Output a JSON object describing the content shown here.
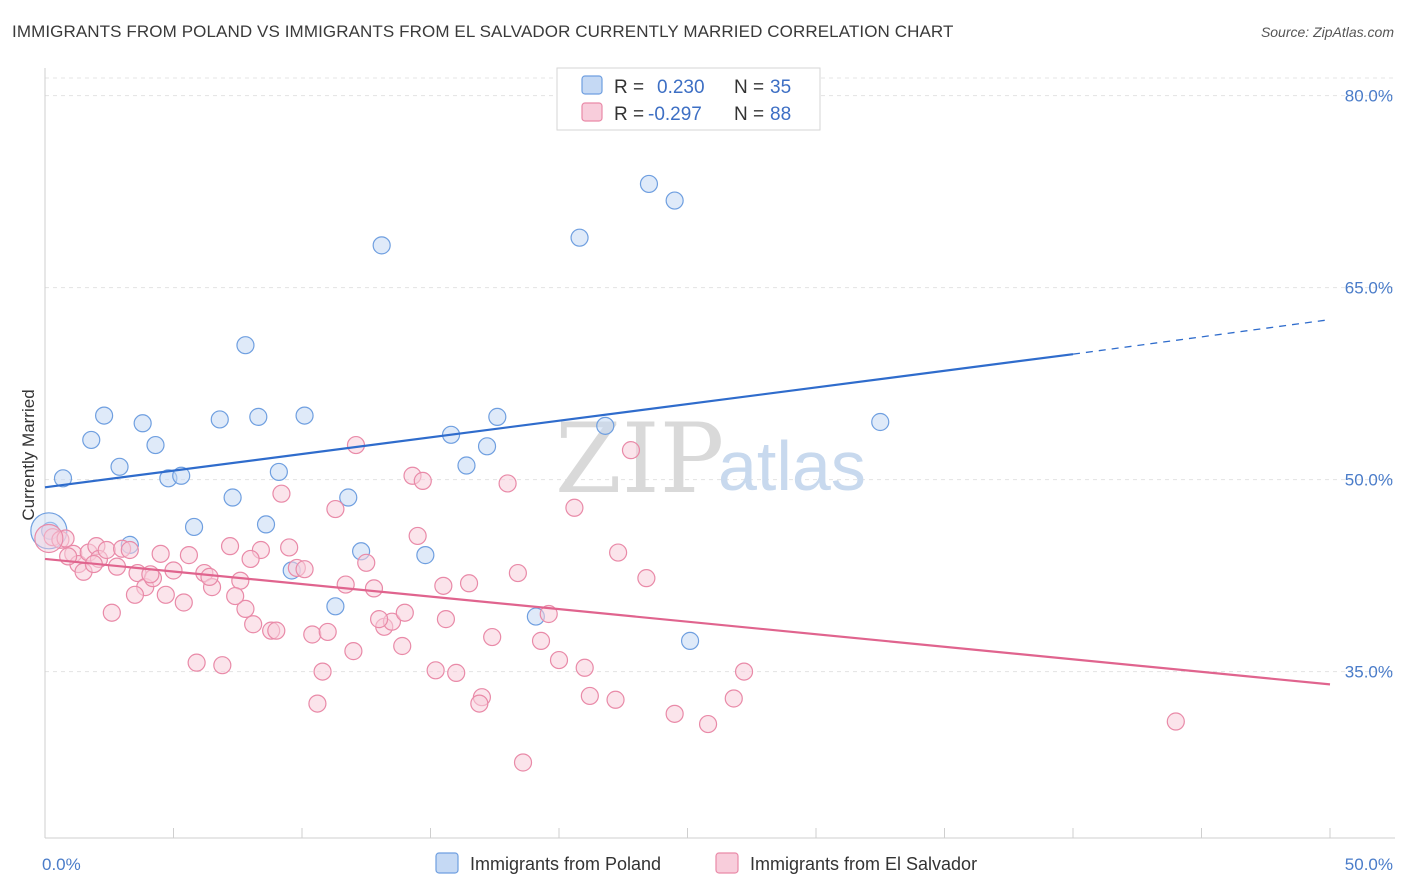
{
  "title": "IMMIGRANTS FROM POLAND VS IMMIGRANTS FROM EL SALVADOR CURRENTLY MARRIED CORRELATION CHART",
  "source": "Source: ZipAtlas.com",
  "watermark": {
    "zip": "ZIP",
    "atlas": "atlas"
  },
  "colors": {
    "poland": "#6f9fe0",
    "poland_fill": "#c5d9f4",
    "poland_line": "#2f6ccc",
    "elsalvador": "#e98aa8",
    "elsalvador_fill": "#f8cddb",
    "elsalvador_line": "#e0648e"
  },
  "legend": {
    "row1": {
      "r_label": "R =",
      "r_value": "0.230",
      "n_label": "N =",
      "n_value": "35"
    },
    "row2": {
      "r_label": "R =",
      "r_value": "-0.297",
      "n_label": "N =",
      "n_value": "88"
    }
  },
  "chart_data": {
    "type": "scatter",
    "title": "IMMIGRANTS FROM POLAND VS IMMIGRANTS FROM EL SALVADOR CURRENTLY MARRIED CORRELATION CHART",
    "xlabel": "",
    "ylabel": "Currently Married",
    "xlim": [
      0,
      50
    ],
    "ylim": [
      22,
      82
    ],
    "x_tick_labels": [
      "0.0%",
      "50.0%"
    ],
    "y_ticks": [
      {
        "value": 80,
        "label": "80.0%"
      },
      {
        "value": 65,
        "label": "65.0%"
      },
      {
        "value": 50,
        "label": "50.0%"
      },
      {
        "value": 35,
        "label": "35.0%"
      }
    ],
    "grid": true,
    "legend_position": "top-center",
    "series": [
      {
        "name": "Immigrants from Poland",
        "x": [
          0.2,
          0.7,
          1.8,
          2.3,
          2.9,
          3.3,
          3.8,
          4.3,
          4.8,
          5.3,
          5.8,
          6.8,
          7.3,
          7.8,
          8.3,
          8.6,
          9.1,
          9.6,
          10.1,
          11.3,
          11.8,
          12.3,
          13.1,
          14.8,
          15.8,
          16.4,
          17.2,
          17.6,
          19.1,
          20.8,
          21.8,
          23.5,
          24.5,
          25.1,
          32.5
        ],
        "y": [
          46.0,
          50.1,
          53.1,
          55.0,
          51.0,
          44.9,
          54.4,
          52.7,
          50.1,
          50.3,
          46.3,
          54.7,
          48.6,
          60.5,
          54.9,
          46.5,
          50.6,
          42.9,
          55.0,
          40.1,
          48.6,
          44.4,
          68.3,
          44.1,
          53.5,
          51.1,
          52.6,
          54.9,
          39.3,
          68.9,
          54.2,
          73.1,
          71.8,
          37.4,
          54.5
        ],
        "trend": {
          "x0": 0,
          "y0": 49.4,
          "x1": 40,
          "y1": 59.8,
          "dash_x1": 50,
          "dash_y1": 62.5
        }
      },
      {
        "name": "Immigrants from El Salvador",
        "x": [
          0.3,
          0.6,
          0.8,
          1.1,
          1.3,
          1.5,
          1.7,
          2.0,
          2.1,
          2.4,
          2.8,
          3.0,
          3.3,
          3.6,
          3.9,
          4.2,
          4.5,
          4.7,
          5.0,
          5.4,
          5.9,
          6.2,
          6.5,
          6.9,
          7.2,
          7.6,
          7.8,
          8.1,
          8.4,
          8.8,
          9.2,
          9.5,
          9.8,
          10.1,
          10.4,
          10.8,
          11.3,
          11.7,
          12.1,
          12.5,
          12.8,
          13.2,
          13.5,
          13.9,
          14.3,
          14.7,
          15.2,
          15.6,
          16.0,
          16.5,
          17.0,
          17.4,
          18.0,
          18.6,
          19.3,
          20.0,
          20.6,
          21.2,
          22.3,
          22.8,
          23.4,
          24.5,
          25.8,
          26.8,
          27.2,
          0.9,
          1.9,
          2.6,
          3.5,
          4.1,
          5.6,
          6.4,
          7.4,
          8.0,
          9.0,
          10.6,
          11.0,
          12.0,
          13.0,
          14.0,
          14.5,
          15.5,
          16.9,
          18.4,
          19.6,
          21.0,
          22.2,
          44.0
        ],
        "y": [
          45.5,
          45.3,
          45.4,
          44.2,
          43.4,
          42.8,
          44.3,
          44.8,
          43.8,
          44.5,
          43.2,
          44.6,
          44.5,
          42.7,
          41.6,
          42.3,
          44.2,
          41.0,
          42.9,
          40.4,
          35.7,
          42.7,
          41.6,
          35.5,
          44.8,
          42.1,
          39.9,
          38.7,
          44.5,
          38.2,
          48.9,
          44.7,
          43.1,
          43.0,
          37.9,
          35.0,
          47.7,
          41.8,
          52.7,
          43.5,
          41.5,
          38.5,
          38.9,
          37.0,
          50.3,
          49.9,
          35.1,
          39.1,
          34.9,
          41.9,
          33.0,
          37.7,
          49.7,
          27.9,
          37.4,
          35.9,
          47.8,
          33.1,
          44.3,
          52.3,
          42.3,
          31.7,
          30.9,
          32.9,
          35.0,
          44.0,
          43.4,
          39.6,
          41.0,
          42.6,
          44.1,
          42.4,
          40.9,
          43.8,
          38.2,
          32.5,
          38.1,
          36.6,
          39.1,
          39.6,
          45.6,
          41.7,
          32.5,
          42.7,
          39.5,
          35.3,
          32.8,
          31.1
        ],
        "trend": {
          "x0": 0,
          "y0": 43.8,
          "x1": 50,
          "y1": 34.0
        }
      }
    ]
  }
}
